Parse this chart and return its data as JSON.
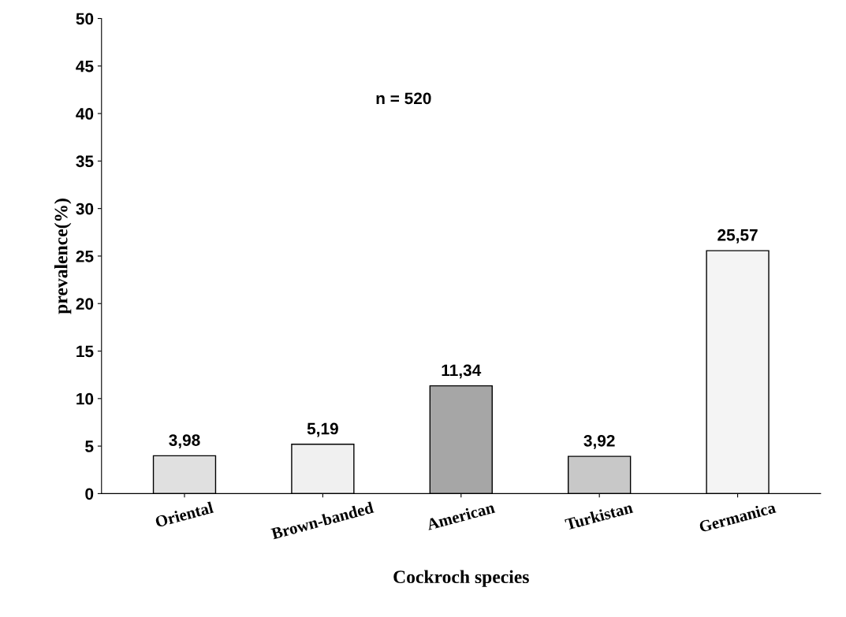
{
  "chart_data": {
    "type": "bar",
    "xlabel": "Cockroch species",
    "ylabel": "prevalence(%)",
    "categories": [
      "Oriental",
      "Brown-banded",
      "American",
      "Turkistan",
      "Germanica"
    ],
    "values": [
      3.98,
      5.19,
      11.34,
      3.92,
      25.57
    ],
    "value_labels": [
      "3,98",
      "5,19",
      "11,34",
      "3,92",
      "25,57"
    ],
    "colors": [
      "#e0e0e0",
      "#f0f0f0",
      "#a6a6a6",
      "#c8c8c8",
      "#f4f4f4"
    ],
    "ylim": [
      0,
      50
    ],
    "yticks": [
      0,
      5,
      10,
      15,
      20,
      25,
      30,
      35,
      40,
      45,
      50
    ],
    "annotations": [
      "n = 520"
    ],
    "grid": false,
    "legend": false
  }
}
